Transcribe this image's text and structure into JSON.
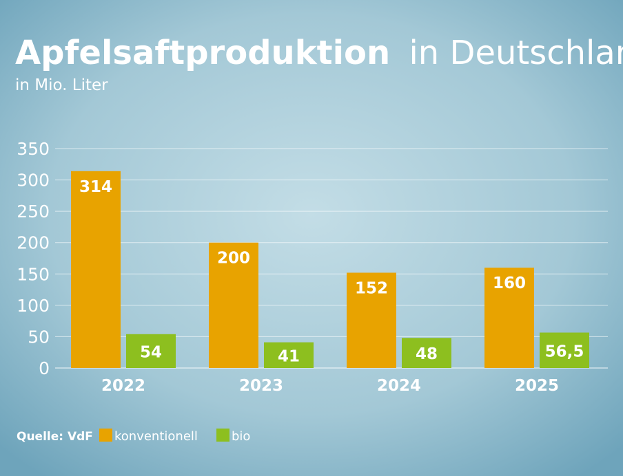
{
  "chart_data": {
    "type": "bar",
    "title_bold": "Apfelsaftproduktion",
    "title_rest": "in Deutschland",
    "subtitle": "in Mio. Liter",
    "categories": [
      "2022",
      "2023",
      "2024",
      "2025"
    ],
    "series": [
      {
        "name": "konventionell",
        "color": "#e8a300",
        "values": [
          314,
          200,
          152,
          160
        ],
        "labels": [
          "314",
          "200",
          "152",
          "160"
        ]
      },
      {
        "name": "bio",
        "color": "#8dbf1f",
        "values": [
          54,
          41,
          48,
          56.5
        ],
        "labels": [
          "54",
          "41",
          "48",
          "56,5"
        ]
      }
    ],
    "ylim": [
      0,
      350
    ],
    "yticks": [
      0,
      50,
      100,
      150,
      200,
      250,
      300,
      350
    ],
    "grid": true,
    "legend_placement": "bottom-left",
    "source": "Quelle: VdF"
  }
}
